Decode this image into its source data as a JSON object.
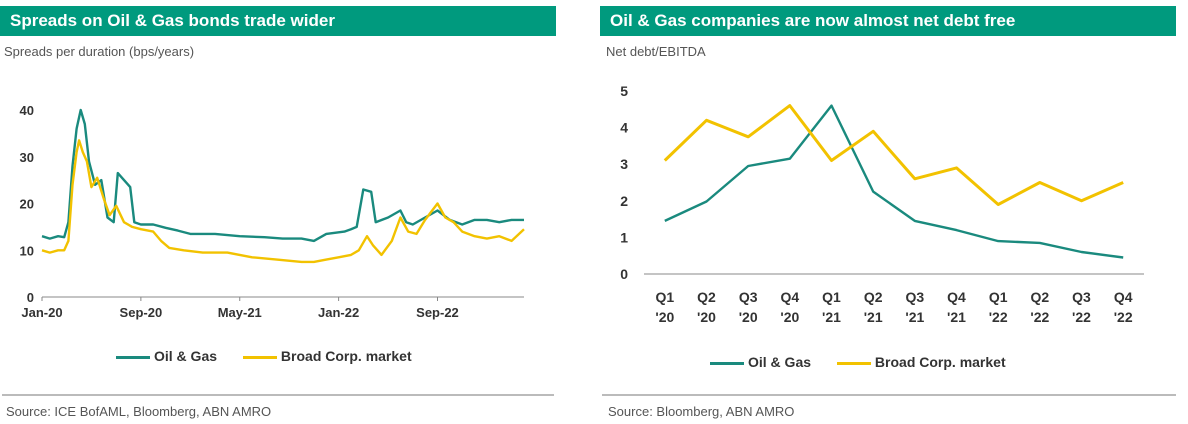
{
  "colors": {
    "oil_gas": "#1a8a7e",
    "broad": "#f2c200",
    "header": "#009a7e"
  },
  "left": {
    "title": "Spreads on Oil & Gas bonds trade wider",
    "subtitle": "Spreads per duration (bps/years)",
    "source": "Source: ICE BofAML, Bloomberg, ABN AMRO",
    "legend": [
      "Oil & Gas",
      "Broad Corp. market"
    ]
  },
  "right": {
    "title": "Oil & Gas companies are now almost net debt free",
    "subtitle": "Net debt/EBITDA",
    "source": "Source: Bloomberg, ABN AMRO",
    "legend": [
      "Oil & Gas",
      "Broad Corp. market"
    ]
  },
  "chart_data": [
    {
      "type": "line",
      "title": "Spreads on Oil & Gas bonds trade wider",
      "ylabel": "Spreads per duration (bps/years)",
      "ylim": [
        0,
        40
      ],
      "yticks": [
        0,
        10,
        20,
        30,
        40
      ],
      "xlim": [
        "2020-01",
        "2023-04"
      ],
      "xticks": [
        {
          "label": "Jan-20",
          "x": "2020-01"
        },
        {
          "label": "Sep-20",
          "x": "2020-09"
        },
        {
          "label": "May-21",
          "x": "2021-05"
        },
        {
          "label": "Jan-22",
          "x": "2022-01"
        },
        {
          "label": "Sep-22",
          "x": "2022-09"
        }
      ],
      "grid": false,
      "legend_position": "bottom",
      "series": [
        {
          "name": "Oil & Gas",
          "points": [
            [
              "2020-01-01",
              13
            ],
            [
              "2020-01-20",
              12.5
            ],
            [
              "2020-02-10",
              13
            ],
            [
              "2020-02-25",
              12.8
            ],
            [
              "2020-03-05",
              16
            ],
            [
              "2020-03-15",
              28
            ],
            [
              "2020-03-25",
              36
            ],
            [
              "2020-04-05",
              40
            ],
            [
              "2020-04-15",
              37
            ],
            [
              "2020-04-25",
              29
            ],
            [
              "2020-05-10",
              24
            ],
            [
              "2020-05-25",
              25
            ],
            [
              "2020-06-10",
              17
            ],
            [
              "2020-06-25",
              16
            ],
            [
              "2020-07-05",
              26.5
            ],
            [
              "2020-07-20",
              25
            ],
            [
              "2020-08-05",
              23.5
            ],
            [
              "2020-08-15",
              16
            ],
            [
              "2020-09-01",
              15.5
            ],
            [
              "2020-10-01",
              15.5
            ],
            [
              "2020-11-01",
              14.8
            ],
            [
              "2020-12-01",
              14.2
            ],
            [
              "2021-01-01",
              13.5
            ],
            [
              "2021-03-01",
              13.5
            ],
            [
              "2021-05-01",
              13
            ],
            [
              "2021-07-01",
              12.8
            ],
            [
              "2021-08-15",
              12.5
            ],
            [
              "2021-10-01",
              12.5
            ],
            [
              "2021-11-01",
              12
            ],
            [
              "2021-12-01",
              13.5
            ],
            [
              "2022-01-15",
              14
            ],
            [
              "2022-02-01",
              14.5
            ],
            [
              "2022-02-15",
              15
            ],
            [
              "2022-03-01",
              23
            ],
            [
              "2022-03-20",
              22.5
            ],
            [
              "2022-04-01",
              16
            ],
            [
              "2022-05-01",
              17
            ],
            [
              "2022-06-01",
              18.5
            ],
            [
              "2022-06-15",
              16
            ],
            [
              "2022-07-01",
              15.5
            ],
            [
              "2022-08-01",
              17
            ],
            [
              "2022-09-01",
              18.5
            ],
            [
              "2022-10-01",
              16.5
            ],
            [
              "2022-11-01",
              15.5
            ],
            [
              "2022-12-01",
              16.5
            ],
            [
              "2023-01-01",
              16.5
            ],
            [
              "2023-02-01",
              16
            ],
            [
              "2023-03-01",
              16.5
            ],
            [
              "2023-04-01",
              16.5
            ]
          ]
        },
        {
          "name": "Broad Corp. market",
          "points": [
            [
              "2020-01-01",
              10
            ],
            [
              "2020-01-20",
              9.5
            ],
            [
              "2020-02-10",
              10
            ],
            [
              "2020-02-25",
              10
            ],
            [
              "2020-03-05",
              12
            ],
            [
              "2020-03-15",
              24
            ],
            [
              "2020-03-25",
              31
            ],
            [
              "2020-04-01",
              33.5
            ],
            [
              "2020-04-10",
              31
            ],
            [
              "2020-04-20",
              29
            ],
            [
              "2020-05-01",
              23.5
            ],
            [
              "2020-05-15",
              25.5
            ],
            [
              "2020-06-01",
              21
            ],
            [
              "2020-06-15",
              17.5
            ],
            [
              "2020-07-01",
              19.5
            ],
            [
              "2020-07-20",
              16
            ],
            [
              "2020-08-10",
              15
            ],
            [
              "2020-09-01",
              14.5
            ],
            [
              "2020-10-01",
              14
            ],
            [
              "2020-10-20",
              12
            ],
            [
              "2020-11-10",
              10.5
            ],
            [
              "2020-12-15",
              10
            ],
            [
              "2021-02-01",
              9.5
            ],
            [
              "2021-04-01",
              9.5
            ],
            [
              "2021-06-01",
              8.5
            ],
            [
              "2021-08-01",
              8
            ],
            [
              "2021-10-01",
              7.5
            ],
            [
              "2021-11-01",
              7.5
            ],
            [
              "2021-12-01",
              8
            ],
            [
              "2022-01-01",
              8.5
            ],
            [
              "2022-02-01",
              9
            ],
            [
              "2022-02-20",
              10
            ],
            [
              "2022-03-10",
              13
            ],
            [
              "2022-03-25",
              11
            ],
            [
              "2022-04-15",
              9
            ],
            [
              "2022-05-10",
              12
            ],
            [
              "2022-06-01",
              17
            ],
            [
              "2022-06-20",
              14
            ],
            [
              "2022-07-10",
              13.5
            ],
            [
              "2022-08-01",
              16.5
            ],
            [
              "2022-09-01",
              20
            ],
            [
              "2022-09-20",
              17
            ],
            [
              "2022-10-10",
              16
            ],
            [
              "2022-11-01",
              14
            ],
            [
              "2022-12-01",
              13
            ],
            [
              "2023-01-01",
              12.5
            ],
            [
              "2023-02-01",
              13
            ],
            [
              "2023-03-01",
              12
            ],
            [
              "2023-04-01",
              14.5
            ]
          ]
        }
      ]
    },
    {
      "type": "line",
      "title": "Oil & Gas companies are now almost net debt free",
      "ylabel": "Net debt/EBITDA",
      "ylim": [
        0,
        5
      ],
      "yticks": [
        0,
        1,
        2,
        3,
        4,
        5
      ],
      "categories": [
        "Q1 '20",
        "Q2 '20",
        "Q3 '20",
        "Q4 '20",
        "Q1 '21",
        "Q2 '21",
        "Q3 '21",
        "Q4 '21",
        "Q1 '22",
        "Q2 '22",
        "Q3 '22",
        "Q4 '22"
      ],
      "category_lines": [
        [
          "Q1",
          "'20"
        ],
        [
          "Q2",
          "'20"
        ],
        [
          "Q3",
          "'20"
        ],
        [
          "Q4",
          "'20"
        ],
        [
          "Q1",
          "'21"
        ],
        [
          "Q2",
          "'21"
        ],
        [
          "Q3",
          "'21"
        ],
        [
          "Q4",
          "'21"
        ],
        [
          "Q1",
          "'22"
        ],
        [
          "Q2",
          "'22"
        ],
        [
          "Q3",
          "'22"
        ],
        [
          "Q4",
          "'22"
        ]
      ],
      "grid": false,
      "legend_position": "bottom",
      "series": [
        {
          "name": "Oil & Gas",
          "values": [
            1.45,
            1.98,
            2.95,
            3.15,
            4.6,
            2.25,
            1.45,
            1.2,
            0.9,
            0.85,
            0.6,
            0.45
          ]
        },
        {
          "name": "Broad Corp. market",
          "values": [
            3.1,
            4.2,
            3.75,
            4.6,
            3.1,
            3.9,
            2.6,
            2.9,
            1.9,
            2.5,
            2.0,
            2.5
          ]
        }
      ]
    }
  ]
}
